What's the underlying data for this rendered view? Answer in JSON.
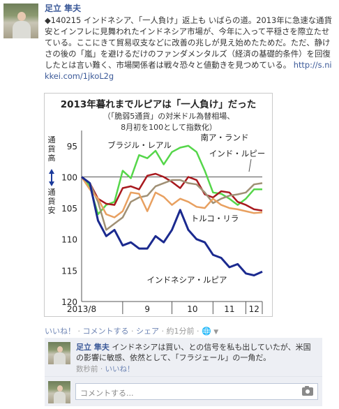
{
  "post": {
    "author": "足立 隼夫",
    "text": "◆140215 インドネシア、「一人負け」返上も いばらの道。2013年に急速な通貨安とインフレに見舞われたインドネシア市場が、今年に入って平穏さを際立たせている。ここにきて貿易収支などに改善の兆しが見え始めたためだ。ただ、静けさの後の「嵐」を避けるだけのファンダメンタルズ（経済の基礎的条件）を回復したとは言い難く、市場関係者は戦々恐々と値動きを見つめている。",
    "link": "http://s.nikkei.com/1jkoL2g"
  },
  "actions": {
    "like": "いいね！",
    "comment": "コメントする",
    "share": "シェア",
    "time": "約1分前",
    "dot": "·"
  },
  "comments": [
    {
      "author": "足立 隼夫",
      "text": "インドネシアは買い、との信号を私も出していたが、米国の影響に敏感、依然として、「フラジェール」の一角だ。",
      "time": "数秒前",
      "like": "いいね！"
    }
  ],
  "reply": {
    "placeholder": "コメントする..."
  },
  "chart_data": {
    "type": "line",
    "title": "2013年暮れまでルピアは「一人負け」だった",
    "subtitle_line1": "（「脆弱5通貨」の対米ドル為替相場、",
    "subtitle_line2": "8月初を100として指数化）",
    "ylabel_top": "通貨高",
    "ylabel_bottom": "通貨安",
    "y_reversed": true,
    "ylim": [
      120,
      93
    ],
    "y_ticks": [
      95,
      100,
      105,
      110,
      115,
      120
    ],
    "x_labels": [
      "2013/8",
      "9",
      "10",
      "11",
      "12"
    ],
    "xlim": [
      0,
      22
    ],
    "series": [
      {
        "name": "ブラジル・レアル",
        "color": "#55d64a",
        "x": [
          0,
          1,
          2,
          3,
          4,
          5,
          6,
          7,
          8,
          9,
          10,
          11,
          12,
          13,
          14,
          15,
          16,
          17,
          18,
          19,
          20,
          21,
          22
        ],
        "values": [
          100,
          101.5,
          106,
          104.5,
          104,
          99,
          100.2,
          96.5,
          97,
          95.8,
          98,
          96,
          95.3,
          95,
          96,
          99,
          102.5,
          102.7,
          103.5,
          104.5,
          103.5,
          102,
          102
        ]
      },
      {
        "name": "南ア・ランド",
        "color": "#a8191e",
        "x": [
          0,
          1,
          2,
          3,
          4,
          5,
          6,
          7,
          8,
          9,
          10,
          11,
          12,
          13,
          14,
          15,
          16,
          17,
          18,
          19,
          20,
          21,
          22
        ],
        "values": [
          100,
          101,
          103.5,
          104.3,
          104.5,
          101.8,
          101.5,
          102,
          99.8,
          99.5,
          100,
          100.8,
          101.8,
          100,
          100.5,
          102.8,
          103.3,
          102.3,
          102.5,
          104,
          104.5,
          105.2,
          105.4
        ]
      },
      {
        "name": "インド・ルピー",
        "color": "#a09075",
        "x": [
          0,
          1,
          2,
          3,
          4,
          5,
          6,
          7,
          8,
          9,
          10,
          11,
          12,
          13,
          14,
          15,
          16,
          17,
          18,
          19,
          20,
          21,
          22
        ],
        "values": [
          100,
          101,
          104,
          108.5,
          107.5,
          106.5,
          104,
          103.3,
          103,
          101.5,
          101,
          100.5,
          100.5,
          101,
          101.2,
          102.5,
          104.2,
          103.5,
          103,
          102.8,
          102.5,
          101.2,
          101
        ]
      },
      {
        "name": "トルコ・リラ",
        "color": "#e8a060",
        "x": [
          0,
          1,
          2,
          3,
          4,
          5,
          6,
          7,
          8,
          9,
          10,
          11,
          12,
          13,
          14,
          15,
          16,
          17,
          18,
          19,
          20,
          21,
          22
        ],
        "values": [
          100,
          102,
          103.5,
          106,
          106.5,
          105.5,
          102.5,
          102.7,
          105.5,
          102.5,
          103.2,
          104.5,
          103.5,
          104,
          104.8,
          105,
          103.5,
          104.5,
          105,
          105.2,
          105.5,
          105.8,
          105.7
        ]
      },
      {
        "name": "インドネシア・ルピア",
        "color": "#1b2a8f",
        "x": [
          0,
          1,
          2,
          3,
          4,
          5,
          6,
          7,
          8,
          9,
          10,
          11,
          12,
          13,
          14,
          15,
          16,
          17,
          18,
          19,
          20,
          21,
          22
        ],
        "values": [
          100,
          101,
          107,
          109.5,
          108.5,
          111,
          110.5,
          111.5,
          111.5,
          109.5,
          110.5,
          108.5,
          105.3,
          108.5,
          110,
          110.5,
          112.5,
          113,
          114.5,
          114,
          115.5,
          115.8,
          115.2
        ]
      }
    ],
    "series_labels": [
      "ブラジル・レアル",
      "南ア・ランド",
      "インド・ルピー",
      "トルコ・リラ",
      "インドネシア・ルピア"
    ]
  }
}
